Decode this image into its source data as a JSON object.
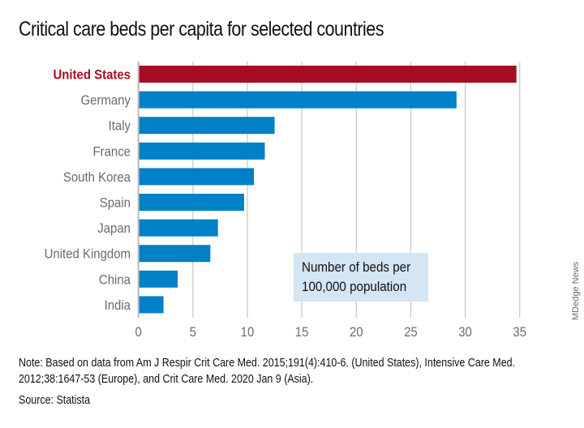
{
  "chart_data": {
    "type": "bar",
    "orientation": "horizontal",
    "title": "Critical care beds per capita for selected countries",
    "categories": [
      "United States",
      "Germany",
      "Italy",
      "France",
      "South Korea",
      "Spain",
      "Japan",
      "United Kingdom",
      "China",
      "India"
    ],
    "values": [
      34.7,
      29.2,
      12.5,
      11.6,
      10.6,
      9.7,
      7.3,
      6.6,
      3.6,
      2.3
    ],
    "highlight_category": "United States",
    "xlabel": "Number of beds per 100,000 population",
    "ylabel": "",
    "xlim": [
      0,
      35
    ],
    "xticks": [
      0,
      5,
      10,
      15,
      20,
      25,
      30,
      35
    ],
    "xtick_labels": [
      "0",
      "5",
      "10",
      "15",
      "20",
      "25",
      "30",
      "35"
    ],
    "grid": "vertical",
    "legend_position": "bottom-center",
    "colors": {
      "highlight": "#a50e22",
      "default": "#0080c6",
      "grid": "#cccccc",
      "legend_bg": "#d4e5f4"
    }
  },
  "title": "Critical care beds per capita for selected countries",
  "legend_text": "Number of beds per\n100,000 population",
  "credit": "MDedge News",
  "note": {
    "label": "Note:",
    "text": " Based on data from Am J Respir Crit Care Med. 2015;191(4):410-6. (United States), Intensive Care Med. 2012;38:1647-53 (Europe), and Crit Care Med. 2020 Jan 9 (Asia)."
  },
  "source": {
    "label": "Source:",
    "text": " Statista"
  }
}
